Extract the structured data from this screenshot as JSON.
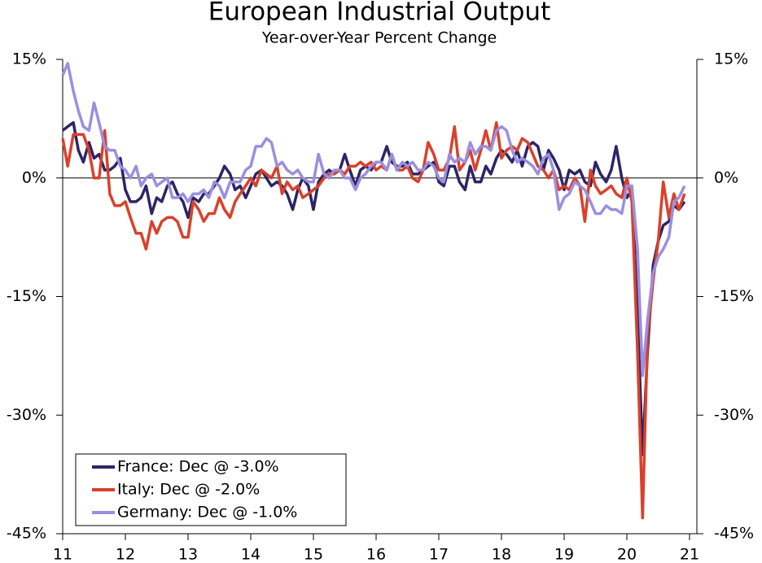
{
  "chart_data": {
    "type": "line",
    "title": "European Industrial Output",
    "subtitle": "Year-over-Year Percent Change",
    "x": [
      11,
      11.08,
      11.17,
      11.25,
      11.33,
      11.42,
      11.5,
      11.58,
      11.67,
      11.75,
      11.83,
      11.92,
      12,
      12.08,
      12.17,
      12.25,
      12.33,
      12.42,
      12.5,
      12.58,
      12.67,
      12.75,
      12.83,
      12.92,
      13,
      13.08,
      13.17,
      13.25,
      13.33,
      13.42,
      13.5,
      13.58,
      13.67,
      13.75,
      13.83,
      13.92,
      14,
      14.08,
      14.17,
      14.25,
      14.33,
      14.42,
      14.5,
      14.58,
      14.67,
      14.75,
      14.83,
      14.92,
      15,
      15.08,
      15.17,
      15.25,
      15.33,
      15.42,
      15.5,
      15.58,
      15.67,
      15.75,
      15.83,
      15.92,
      16,
      16.08,
      16.17,
      16.25,
      16.33,
      16.42,
      16.5,
      16.58,
      16.67,
      16.75,
      16.83,
      16.92,
      17,
      17.08,
      17.17,
      17.25,
      17.33,
      17.42,
      17.5,
      17.58,
      17.67,
      17.75,
      17.83,
      17.92,
      18,
      18.08,
      18.17,
      18.25,
      18.33,
      18.42,
      18.5,
      18.58,
      18.67,
      18.75,
      18.83,
      18.92,
      19,
      19.08,
      19.17,
      19.25,
      19.33,
      19.42,
      19.5,
      19.58,
      19.67,
      19.75,
      19.83,
      19.92,
      20,
      20.08,
      20.17,
      20.25,
      20.33,
      20.42,
      20.5,
      20.58,
      20.67,
      20.75,
      20.83,
      20.92
    ],
    "series": [
      {
        "name": "France: Dec @ -3.0%",
        "color": "#2e2466",
        "values": [
          6,
          6.5,
          7,
          3.5,
          2,
          4.5,
          2.5,
          3,
          1,
          1,
          1.5,
          2.5,
          -1.5,
          -3,
          -3,
          -2.5,
          -1,
          -4.5,
          -2.5,
          -3,
          -1,
          -0.5,
          -2,
          -3,
          -5,
          -2.5,
          -3,
          -2,
          -2,
          -1,
          0,
          1.5,
          0.5,
          -1.5,
          -1,
          -2.5,
          -1,
          0.5,
          1,
          0,
          -1,
          -0.5,
          -1,
          -2,
          -4,
          -1.5,
          0,
          -1,
          -4,
          -0.5,
          0.5,
          1,
          0.5,
          1,
          3,
          1,
          -1,
          1,
          1.5,
          1,
          2,
          2,
          4,
          2,
          1.5,
          1.5,
          2,
          0.5,
          0.5,
          1,
          1.5,
          2,
          -0.5,
          -1,
          1.5,
          1.5,
          -0.5,
          -1.5,
          1.5,
          -0.5,
          -0.5,
          1.5,
          0.5,
          2.5,
          3.5,
          3,
          2,
          3.5,
          1.5,
          4,
          4.5,
          4,
          1,
          3.5,
          2.5,
          1,
          -1.5,
          1,
          0.5,
          1,
          -0.5,
          -1,
          2,
          0.5,
          -0.5,
          1,
          4,
          0,
          -2.5,
          -1.5,
          -17,
          -35,
          -22,
          -11,
          -8,
          -6,
          -5.5,
          -3.5,
          -4,
          -3
        ]
      },
      {
        "name": "Italy: Dec @ -2.0%",
        "color": "#d9412b",
        "values": [
          5,
          1.5,
          5.5,
          5.5,
          5.5,
          3.5,
          0,
          0,
          6,
          -2,
          -3.5,
          -3.5,
          -3,
          -5,
          -7,
          -7,
          -9,
          -5.5,
          -7,
          -5.5,
          -5,
          -5,
          -5.5,
          -7.5,
          -7.5,
          -3,
          -4,
          -5.5,
          -4.5,
          -4.5,
          -2.5,
          -4,
          -5,
          -3,
          -2,
          -1,
          0,
          -1,
          1,
          0.5,
          0,
          1.5,
          -2,
          -0.5,
          -1.5,
          -1,
          -2.5,
          -2,
          -1.5,
          -1,
          0,
          0.5,
          0.5,
          1,
          0.5,
          1.5,
          1.5,
          2,
          1.5,
          2,
          1,
          1.5,
          1,
          3,
          1,
          1,
          1.5,
          0,
          -0.5,
          1,
          4.5,
          3,
          1,
          1,
          2.5,
          6.5,
          1,
          2,
          3.5,
          1,
          3.5,
          6,
          3.5,
          7,
          2.5,
          3.5,
          4,
          3.5,
          5,
          4.5,
          3,
          1.5,
          1,
          0,
          1,
          -1.5,
          -1,
          -1.5,
          0,
          -1,
          -5.5,
          1,
          -1,
          -2,
          -1.5,
          -1,
          -2,
          -2.5,
          0,
          -3,
          -22,
          -43,
          -20,
          -13,
          -8,
          -0.5,
          -5,
          -2,
          -4,
          -2
        ]
      },
      {
        "name": "Germany: Dec @ -1.0%",
        "color": "#9b8fe0",
        "values": [
          13,
          14.5,
          11,
          8.5,
          6.5,
          6,
          9.5,
          7,
          4,
          3.5,
          3.5,
          1.5,
          1,
          0,
          1.5,
          -1,
          0,
          0.5,
          -1,
          -0.5,
          0,
          -2.5,
          -2.5,
          -2,
          -3,
          -2,
          -2,
          -1.5,
          -2.5,
          -0.5,
          -1,
          -2.5,
          -0.5,
          -0.5,
          -0.5,
          1,
          1.5,
          4,
          4,
          5,
          4.5,
          1.5,
          2,
          1,
          0.5,
          1,
          0,
          -0.5,
          -0.5,
          3,
          0.5,
          0,
          1,
          1,
          0,
          0,
          -1.5,
          0,
          0.5,
          1.5,
          2,
          2,
          1,
          3,
          1,
          2,
          1.5,
          2,
          1,
          1,
          2,
          1.5,
          0,
          -0.5,
          3,
          2,
          2.5,
          2,
          4.5,
          3,
          4,
          4,
          3.5,
          6,
          6.5,
          6,
          3.5,
          2,
          2.5,
          2,
          1.5,
          0.5,
          2.5,
          3,
          1,
          -4,
          -2.5,
          -2,
          -0.5,
          -1,
          -1.5,
          -3,
          -4.5,
          -4.5,
          -3.5,
          -4,
          -4,
          -4.5,
          -1,
          -1,
          -9,
          -25,
          -18,
          -12,
          -10,
          -9,
          -7.5,
          -3,
          -2.5,
          -1
        ]
      }
    ],
    "xlim": [
      11,
      21
    ],
    "xticks": [
      11,
      12,
      13,
      14,
      15,
      16,
      17,
      18,
      19,
      20,
      21
    ],
    "ylim": [
      -45,
      15
    ],
    "yticks": [
      {
        "value": -45,
        "label": "-45%"
      },
      {
        "value": -30,
        "label": "-30%"
      },
      {
        "value": -15,
        "label": "-15%"
      },
      {
        "value": 0,
        "label": "0%"
      },
      {
        "value": 15,
        "label": "15%"
      }
    ],
    "legend": "lower left"
  }
}
